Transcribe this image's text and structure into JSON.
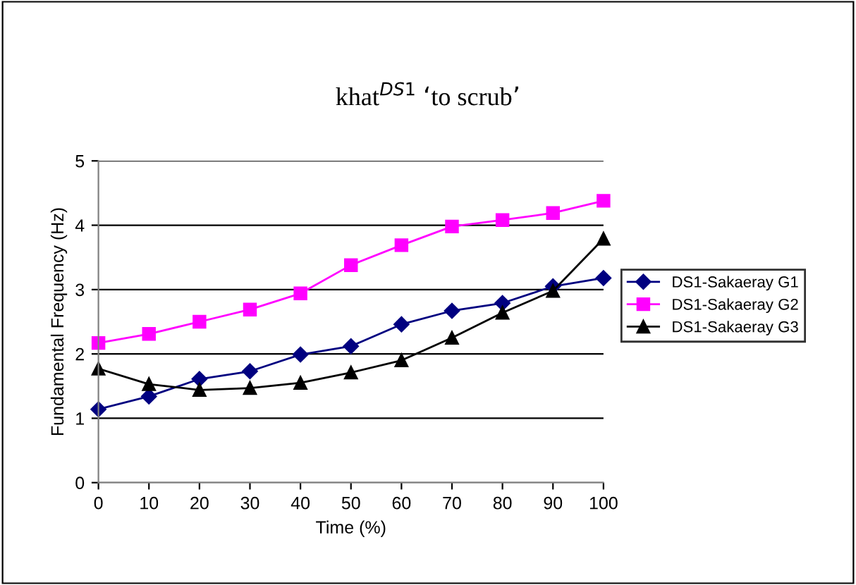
{
  "chart_data": {
    "type": "line",
    "title": "khat$^{DS1}$ ‘to scrub’",
    "xlabel": "Time (%)",
    "ylabel": "Fundamental Frequency (Hz)",
    "x": [
      0,
      10,
      20,
      30,
      40,
      50,
      60,
      70,
      80,
      90,
      100
    ],
    "series": [
      {
        "name": "DS1-Sakaeray G1",
        "color": "#000080",
        "marker": "diamond",
        "values": [
          1.14,
          1.34,
          1.61,
          1.73,
          1.99,
          2.12,
          2.46,
          2.67,
          2.79,
          3.05,
          3.18
        ]
      },
      {
        "name": "DS1-Sakaeray G2",
        "color": "#ff00ff",
        "marker": "square",
        "values": [
          2.17,
          2.31,
          2.5,
          2.69,
          2.94,
          3.38,
          3.69,
          3.98,
          4.08,
          4.19,
          4.38
        ]
      },
      {
        "name": "DS1-Sakaeray G3",
        "color": "#000000",
        "marker": "triangle",
        "values": [
          1.77,
          1.53,
          1.44,
          1.47,
          1.55,
          1.71,
          1.9,
          2.25,
          2.64,
          2.98,
          3.79
        ]
      }
    ],
    "xlim": [
      0,
      100
    ],
    "xticks": [
      0,
      10,
      20,
      30,
      40,
      50,
      60,
      70,
      80,
      90,
      100
    ],
    "ylim": [
      0,
      5
    ],
    "yticks": [
      0,
      1,
      2,
      3,
      4,
      5
    ],
    "grid": "y",
    "legend": "right",
    "line_style": "solid"
  }
}
